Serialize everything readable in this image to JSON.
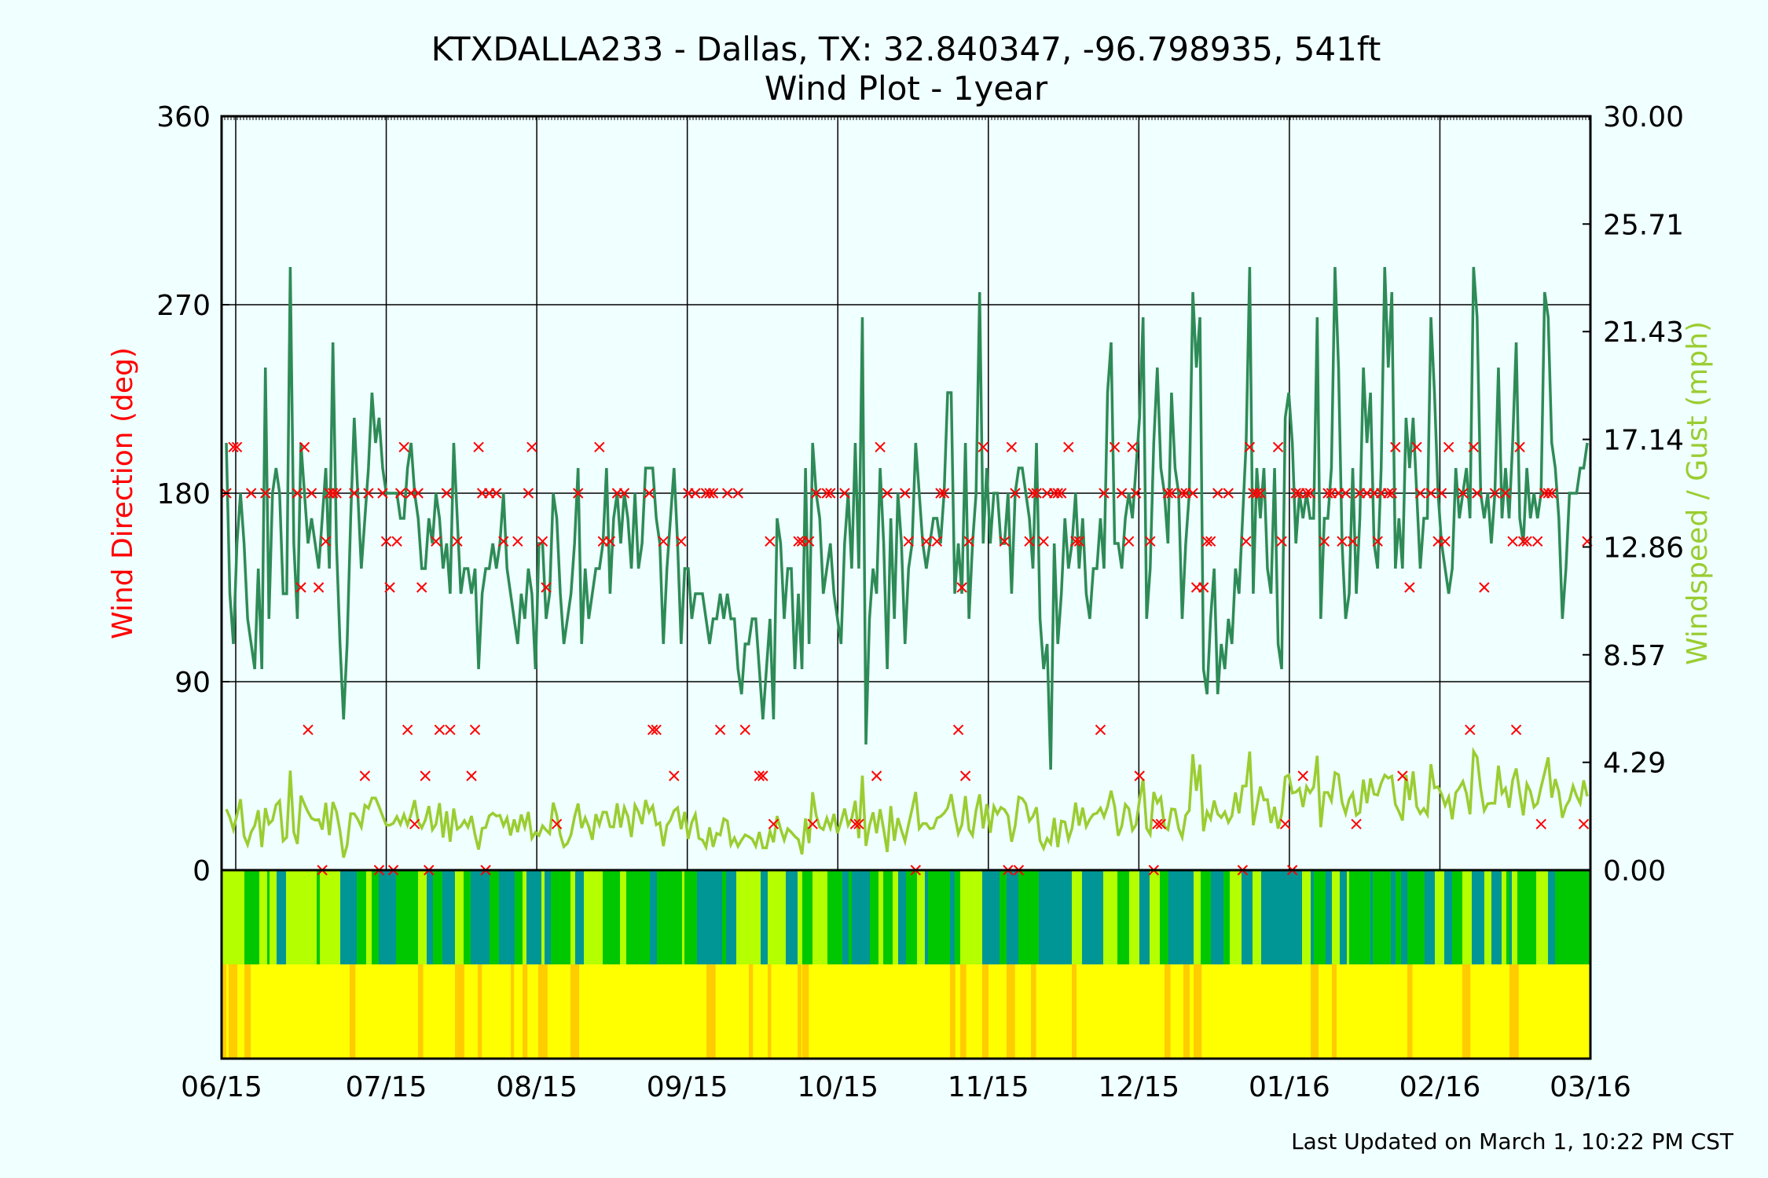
{
  "chart_data": {
    "type": "line",
    "title": "KTXDALLA233 - Dallas, TX: 32.840347, -96.798935, 541ft",
    "subtitle": "Wind Plot - 1year",
    "ylabel_left": "Wind Direction (deg)",
    "ylabel_right": "Windspeed / Gust (mph)",
    "footer": "Last Updated on March 1, 10:22 PM CST",
    "x_tick_labels": [
      "06/15",
      "07/15",
      "08/15",
      "09/15",
      "10/15",
      "11/15",
      "12/15",
      "01/16",
      "02/16",
      "03/16"
    ],
    "y_left_ticks": [
      "0",
      "90",
      "180",
      "270",
      "360"
    ],
    "y_right_ticks": [
      "0.00",
      "4.29",
      "8.57",
      "12.86",
      "17.14",
      "21.43",
      "25.71",
      "30.00"
    ],
    "y_left_range": [
      0,
      360
    ],
    "y_right_range": [
      0,
      30
    ],
    "grid": true,
    "colors": {
      "background": "#f0ffff",
      "direction_markers": "#ff0000",
      "gust_line": "#2e8b57",
      "speed_line": "#9acd32",
      "band_dark_green": "#00c800",
      "band_teal": "#009696",
      "band_lime": "#b4ff00",
      "band_yellow": "#ffff00",
      "band_orange": "#ffcc00"
    },
    "gust": [
      17,
      11,
      9,
      13,
      15,
      13,
      10,
      9,
      8,
      12,
      8,
      20,
      10,
      15,
      16,
      15,
      11,
      11,
      24,
      13,
      10,
      17,
      15,
      13,
      14,
      13,
      12,
      14,
      16,
      12,
      21,
      13,
      9,
      6,
      9,
      14,
      18,
      15,
      12,
      14,
      16,
      19,
      17,
      18,
      16,
      15,
      15,
      15,
      15,
      14,
      14,
      16,
      17,
      15,
      14,
      12,
      12,
      14,
      13,
      15,
      14,
      12,
      13,
      11,
      17,
      14,
      11,
      12,
      12,
      11,
      12,
      8,
      11,
      12,
      12,
      13,
      12,
      13,
      15,
      12,
      11,
      10,
      9,
      11,
      10,
      12,
      11,
      8,
      13,
      13,
      10,
      11,
      15,
      14,
      11,
      9,
      10,
      11,
      13,
      16,
      9,
      12,
      10,
      11,
      12,
      12,
      13,
      16,
      11,
      14,
      15,
      13,
      15,
      14,
      12,
      15,
      12,
      13,
      16,
      16,
      16,
      14,
      13,
      9,
      12,
      14,
      16,
      13,
      9,
      12,
      12,
      10,
      11,
      11,
      11,
      10,
      9,
      10,
      10,
      11,
      10,
      11,
      10,
      10,
      8,
      7,
      9,
      9,
      10,
      10,
      8,
      6,
      8,
      10,
      6,
      14,
      13,
      10,
      12,
      12,
      8,
      11,
      8,
      16,
      9,
      17,
      15,
      14,
      11,
      12,
      13,
      11,
      10,
      9,
      13,
      15,
      12,
      17,
      12,
      22,
      5,
      10,
      12,
      11,
      16,
      13,
      8,
      14,
      10,
      15,
      13,
      9,
      12,
      13,
      17,
      15,
      13,
      12,
      13,
      14,
      14,
      13,
      15,
      19,
      19,
      11,
      13,
      11,
      17,
      10,
      13,
      15,
      23,
      13,
      16,
      13,
      15,
      15,
      13,
      13,
      15,
      11,
      15,
      16,
      16,
      15,
      14,
      12,
      17,
      10,
      8,
      9,
      4,
      13,
      9,
      11,
      14,
      12,
      13,
      15,
      12,
      14,
      11,
      10,
      12,
      12,
      14,
      12,
      19,
      21,
      13,
      13,
      12,
      14,
      15,
      14,
      16,
      18,
      22,
      10,
      12,
      17,
      20,
      16,
      15,
      13,
      19,
      16,
      15,
      10,
      13,
      15,
      23,
      20,
      22,
      8,
      7,
      10,
      12,
      7,
      9,
      8,
      10,
      9,
      12,
      11,
      14,
      17,
      24,
      11,
      16,
      14,
      16,
      12,
      11,
      16,
      9,
      8,
      18,
      19,
      17,
      13,
      15,
      14,
      15,
      14,
      14,
      22,
      10,
      14,
      14,
      16,
      24,
      20,
      13,
      10,
      11,
      16,
      11,
      14,
      20,
      17,
      19,
      13,
      12,
      16,
      24,
      20,
      23,
      12,
      14,
      12,
      18,
      16,
      18,
      15,
      12,
      14,
      14,
      22,
      19,
      15,
      13,
      12,
      11,
      12,
      16,
      14,
      15,
      16,
      14,
      24,
      22,
      15,
      14,
      15,
      13,
      15,
      20,
      14,
      16,
      14,
      17,
      21,
      14,
      13,
      16,
      14,
      15,
      14,
      15,
      23,
      22,
      17,
      16,
      14,
      10,
      12,
      15,
      15,
      15,
      16,
      16,
      17
    ]
  },
  "footer_text": "Last Updated on March 1, 10:22 PM CST"
}
